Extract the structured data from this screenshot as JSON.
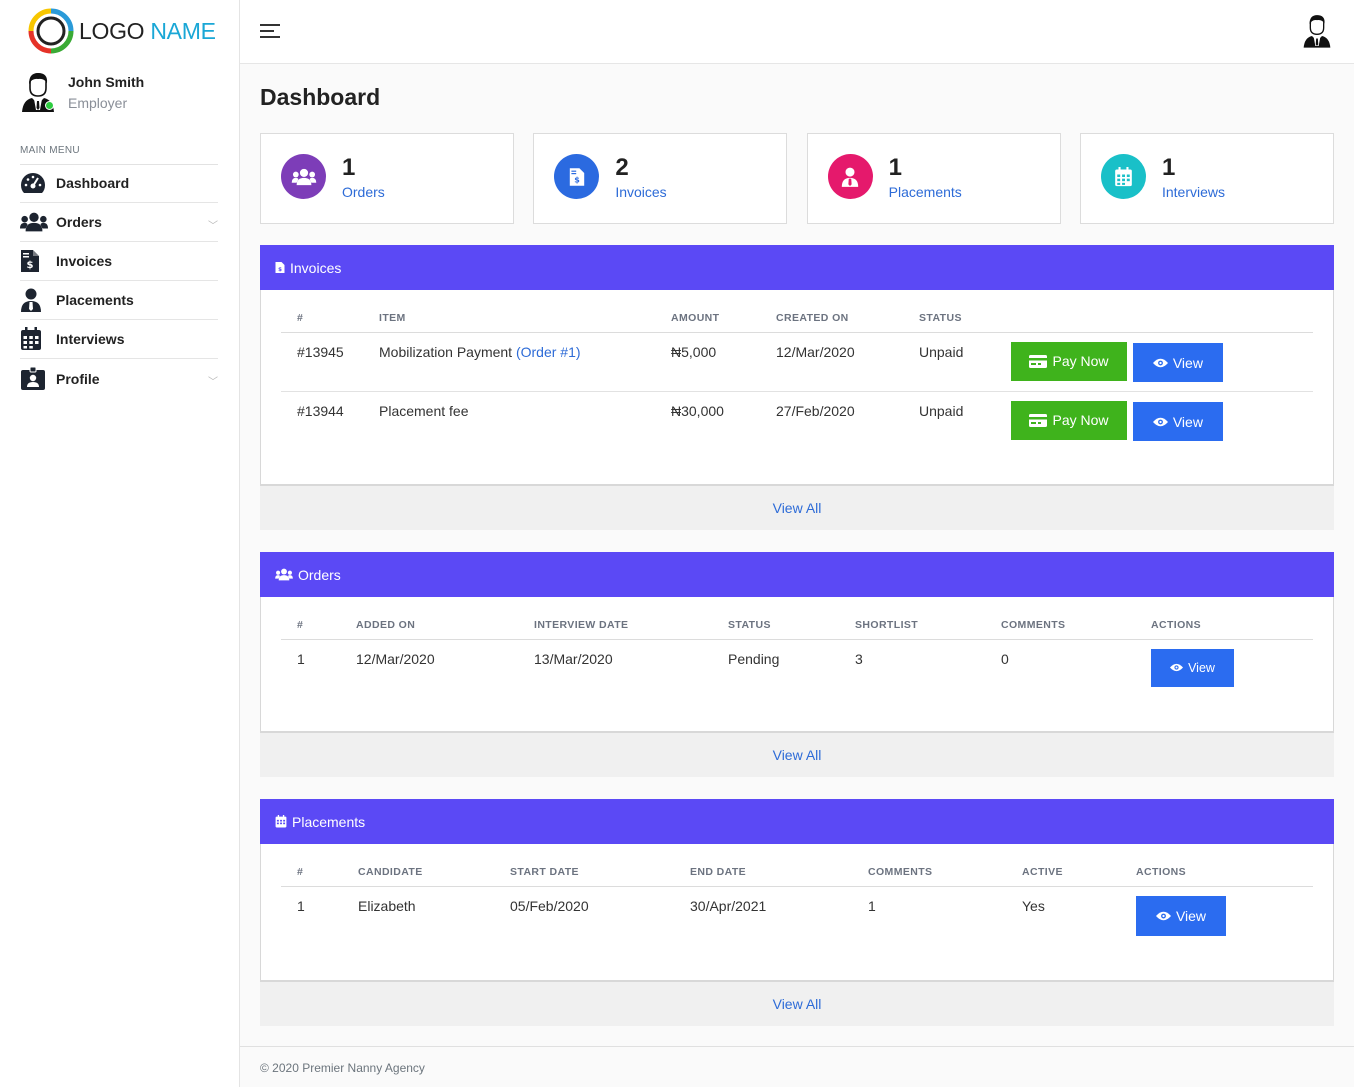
{
  "brand": {
    "logo_word1": "LOGO",
    "logo_word2": "NAME"
  },
  "user": {
    "name": "John Smith",
    "role": "Employer"
  },
  "sidebar": {
    "menu_title": "MAIN MENU",
    "items": [
      {
        "label": "Dashboard",
        "icon": "tachometer-icon",
        "has_chevron": false
      },
      {
        "label": "Orders",
        "icon": "users-icon",
        "has_chevron": true
      },
      {
        "label": "Invoices",
        "icon": "invoice-icon",
        "has_chevron": false
      },
      {
        "label": "Placements",
        "icon": "user-tie-icon",
        "has_chevron": false
      },
      {
        "label": "Interviews",
        "icon": "calendar-icon",
        "has_chevron": false
      },
      {
        "label": "Profile",
        "icon": "id-badge-icon",
        "has_chevron": true
      }
    ]
  },
  "page": {
    "title": "Dashboard"
  },
  "stats": [
    {
      "value": "1",
      "label": "Orders",
      "icon": "users-icon",
      "color": "#7d3db8"
    },
    {
      "value": "2",
      "label": "Invoices",
      "icon": "invoice-icon",
      "color": "#2b6ae0"
    },
    {
      "value": "1",
      "label": "Placements",
      "icon": "user-tie-icon",
      "color": "#e5196c"
    },
    {
      "value": "1",
      "label": "Interviews",
      "icon": "calendar-icon",
      "color": "#19c0c8"
    }
  ],
  "invoices": {
    "title": "Invoices",
    "columns": [
      "#",
      "ITEM",
      "AMOUNT",
      "CREATED ON",
      "STATUS"
    ],
    "rows": [
      {
        "id": "#13945",
        "item": "Mobilization Payment",
        "item_link": "(Order #1)",
        "amount": "₦5,000",
        "created": "12/Mar/2020",
        "status": "Unpaid"
      },
      {
        "id": "#13944",
        "item": "Placement fee",
        "item_link": "",
        "amount": "₦30,000",
        "created": "27/Feb/2020",
        "status": "Unpaid"
      }
    ],
    "pay_label": "Pay Now",
    "view_label": "View",
    "view_all": "View All"
  },
  "orders": {
    "title": "Orders",
    "columns": [
      "#",
      "ADDED ON",
      "INTERVIEW DATE",
      "STATUS",
      "SHORTLIST",
      "COMMENTS",
      "ACTIONS"
    ],
    "rows": [
      {
        "id": "1",
        "added": "12/Mar/2020",
        "interview": "13/Mar/2020",
        "status": "Pending",
        "shortlist": "3",
        "comments": "0"
      }
    ],
    "view_label": "View",
    "view_all": "View All"
  },
  "placements": {
    "title": "Placements",
    "columns": [
      "#",
      "CANDIDATE",
      "START DATE",
      "END DATE",
      "COMMENTS",
      "ACTIVE",
      "ACTIONS"
    ],
    "rows": [
      {
        "id": "1",
        "candidate": "Elizabeth",
        "start": "05/Feb/2020",
        "end": "30/Apr/2021",
        "comments": "1",
        "active": "Yes"
      }
    ],
    "view_label": "View",
    "view_all": "View All"
  },
  "footer": {
    "text": "© 2020 Premier Nanny Agency"
  },
  "colors": {
    "header": "#5b49f5",
    "link": "#2d6bd7",
    "green": "#3fb31c",
    "blue": "#2b6cf0"
  }
}
